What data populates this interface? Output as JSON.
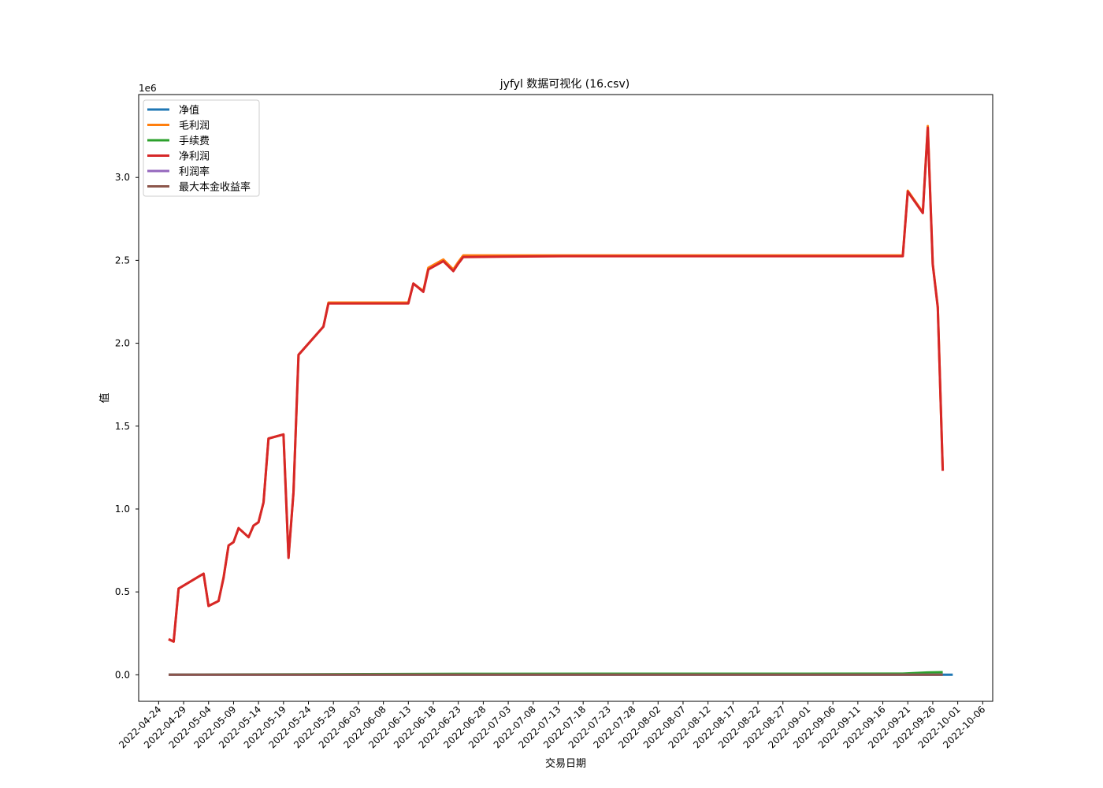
{
  "chart_data": {
    "type": "line",
    "title": "jyfyl 数据可视化 (16.csv)",
    "xlabel": "交易日期",
    "ylabel": "值",
    "y_offset_label": "1e6",
    "y_scale_factor": 1000000,
    "ylim": [
      -0.16,
      3.5
    ],
    "y_ticks": [
      0.0,
      0.5,
      1.0,
      1.5,
      2.0,
      2.5,
      3.0
    ],
    "y_tick_labels": [
      "0.0",
      "0.5",
      "1.0",
      "1.5",
      "2.0",
      "2.5",
      "3.0"
    ],
    "xlim": [
      "2022-04-20",
      "2022-10-08"
    ],
    "x_ticks": [
      "2022-04-24",
      "2022-04-29",
      "2022-05-04",
      "2022-05-09",
      "2022-05-14",
      "2022-05-19",
      "2022-05-24",
      "2022-05-29",
      "2022-06-03",
      "2022-06-08",
      "2022-06-13",
      "2022-06-18",
      "2022-06-23",
      "2022-06-28",
      "2022-07-03",
      "2022-07-08",
      "2022-07-13",
      "2022-07-18",
      "2022-07-23",
      "2022-07-28",
      "2022-08-02",
      "2022-08-07",
      "2022-08-12",
      "2022-08-17",
      "2022-08-22",
      "2022-08-27",
      "2022-09-01",
      "2022-09-06",
      "2022-09-11",
      "2022-09-16",
      "2022-09-21",
      "2022-09-26",
      "2022-10-01",
      "2022-10-06"
    ],
    "legend_position": "top-left",
    "grid": false,
    "series": [
      {
        "name": "净值",
        "color": "#1f77b4",
        "x": [
          "2022-04-26",
          "2022-09-30"
        ],
        "values": [
          0,
          0
        ]
      },
      {
        "name": "毛利润",
        "color": "#ff7f0e",
        "x": [
          "2022-04-26",
          "2022-04-27",
          "2022-04-28",
          "2022-05-03",
          "2022-05-04",
          "2022-05-06",
          "2022-05-07",
          "2022-05-08",
          "2022-05-09",
          "2022-05-10",
          "2022-05-12",
          "2022-05-13",
          "2022-05-14",
          "2022-05-15",
          "2022-05-16",
          "2022-05-19",
          "2022-05-20",
          "2022-05-21",
          "2022-05-22",
          "2022-05-27",
          "2022-05-28",
          "2022-06-13",
          "2022-06-14",
          "2022-06-16",
          "2022-06-17",
          "2022-06-20",
          "2022-06-22",
          "2022-06-23",
          "2022-06-24",
          "2022-07-14",
          "2022-09-20",
          "2022-09-21",
          "2022-09-24",
          "2022-09-25",
          "2022-09-26",
          "2022-09-27",
          "2022-09-28"
        ],
        "values": [
          0.215,
          0.2,
          0.52,
          0.61,
          0.415,
          0.445,
          0.59,
          0.78,
          0.8,
          0.885,
          0.83,
          0.9,
          0.92,
          1.04,
          1.425,
          1.45,
          0.71,
          1.1,
          1.93,
          2.1,
          2.245,
          2.245,
          2.36,
          2.315,
          2.455,
          2.505,
          2.445,
          2.49,
          2.53,
          2.53,
          2.53,
          2.92,
          2.79,
          3.31,
          2.48,
          2.22,
          1.235
        ]
      },
      {
        "name": "手续费",
        "color": "#2ca02c",
        "x": [
          "2022-04-26",
          "2022-05-22",
          "2022-06-24",
          "2022-09-20",
          "2022-09-25",
          "2022-09-28"
        ],
        "values": [
          0.001,
          0.003,
          0.006,
          0.007,
          0.014,
          0.016
        ]
      },
      {
        "name": "净利润",
        "color": "#d62728",
        "x": [
          "2022-04-26",
          "2022-04-27",
          "2022-04-28",
          "2022-05-03",
          "2022-05-04",
          "2022-05-06",
          "2022-05-07",
          "2022-05-08",
          "2022-05-09",
          "2022-05-10",
          "2022-05-12",
          "2022-05-13",
          "2022-05-14",
          "2022-05-15",
          "2022-05-16",
          "2022-05-19",
          "2022-05-20",
          "2022-05-21",
          "2022-05-22",
          "2022-05-27",
          "2022-05-28",
          "2022-06-13",
          "2022-06-14",
          "2022-06-16",
          "2022-06-17",
          "2022-06-20",
          "2022-06-22",
          "2022-06-23",
          "2022-06-24",
          "2022-07-14",
          "2022-09-20",
          "2022-09-21",
          "2022-09-24",
          "2022-09-25",
          "2022-09-26",
          "2022-09-27",
          "2022-09-28"
        ],
        "values": [
          0.215,
          0.2,
          0.52,
          0.61,
          0.415,
          0.445,
          0.585,
          0.78,
          0.8,
          0.885,
          0.83,
          0.9,
          0.92,
          1.04,
          1.425,
          1.45,
          0.705,
          1.1,
          1.93,
          2.1,
          2.24,
          2.24,
          2.36,
          2.31,
          2.445,
          2.495,
          2.435,
          2.48,
          2.52,
          2.525,
          2.525,
          2.915,
          2.785,
          3.3,
          2.475,
          2.215,
          1.23
        ]
      },
      {
        "name": "利润率",
        "color": "#9467bd",
        "x": [
          "2022-04-26",
          "2022-09-28"
        ],
        "values": [
          0,
          0
        ]
      },
      {
        "name": "最大本金收益率",
        "color": "#8c564b",
        "x": [
          "2022-04-26",
          "2022-09-28"
        ],
        "values": [
          0,
          0
        ]
      }
    ]
  }
}
